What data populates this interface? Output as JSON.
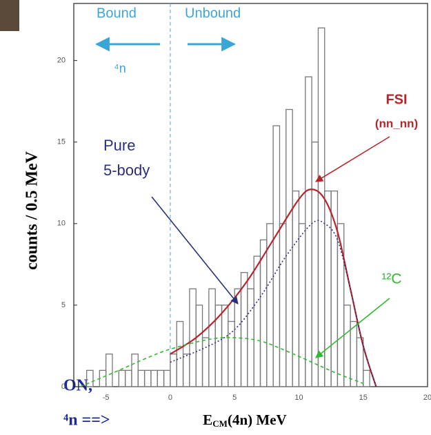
{
  "chart_data": {
    "type": "histogram",
    "ylabel": "counts / 0.5 MeV",
    "xlabel": [
      "E",
      "CM",
      "(4n) MeV"
    ],
    "xlim": [
      -7.5,
      20
    ],
    "ylim": [
      0,
      23.5
    ],
    "xticks": [
      -5,
      0,
      5,
      10,
      15,
      20
    ],
    "yticks": [
      0,
      5,
      10,
      15,
      20
    ],
    "bins": [
      -7,
      -6.5,
      -6,
      -5.5,
      -5,
      -4.5,
      -4,
      -3.5,
      -3,
      -2.5,
      -2,
      -1.5,
      -1,
      -0.5,
      0,
      0.5,
      1,
      1.5,
      2,
      2.5,
      3,
      3.5,
      4,
      4.5,
      5,
      5.5,
      6,
      6.5,
      7,
      7.5,
      8,
      8.5,
      9,
      9.5,
      10,
      10.5,
      11,
      11.5,
      12,
      12.5,
      13,
      13.5,
      14,
      14.5,
      15,
      15.5,
      16
    ],
    "counts": [
      0,
      1,
      0,
      1,
      2,
      0,
      1,
      1,
      2,
      1,
      1,
      1,
      1,
      1,
      2,
      4,
      2,
      6,
      5,
      3,
      6,
      5,
      5,
      4,
      6,
      7,
      6,
      8,
      9,
      10,
      16,
      10,
      17,
      12,
      10,
      19,
      15,
      22,
      12,
      12,
      10,
      5,
      4,
      3,
      1,
      0
    ],
    "color": "#777777",
    "vline": 0,
    "curves": [
      {
        "name": "FSI",
        "sub": "(nn_nn)",
        "color": "#b8242c",
        "style": "solid",
        "x": [
          0,
          2,
          4,
          6,
          8,
          10,
          11,
          12,
          13,
          14,
          15,
          16
        ],
        "y": [
          2,
          3,
          4.5,
          6.5,
          9,
          11.5,
          12.1,
          11.5,
          9.5,
          6,
          2.5,
          0
        ]
      },
      {
        "name": "Pure",
        "sub": "5-body",
        "color": "#2b2f7a",
        "style": "dotted",
        "x": [
          0,
          3,
          5,
          7,
          9,
          11,
          12,
          13,
          14,
          15,
          16
        ],
        "y": [
          1.5,
          2.5,
          3.5,
          5.5,
          8,
          10,
          10,
          9,
          6,
          2.5,
          0
        ]
      },
      {
        "name": "¹²C",
        "color": "#33b833",
        "style": "dashed",
        "x": [
          -7,
          -4,
          -2,
          0,
          3,
          5,
          7,
          9,
          11,
          13,
          15
        ],
        "y": [
          0,
          1,
          1.7,
          2.3,
          2.9,
          3,
          2.8,
          2.2,
          1.5,
          0.8,
          0.2
        ]
      }
    ],
    "annotations": [
      "Bound",
      "Unbound",
      "⁴n"
    ]
  },
  "background_text": [
    "ON,",
    "⁴n ==>"
  ]
}
